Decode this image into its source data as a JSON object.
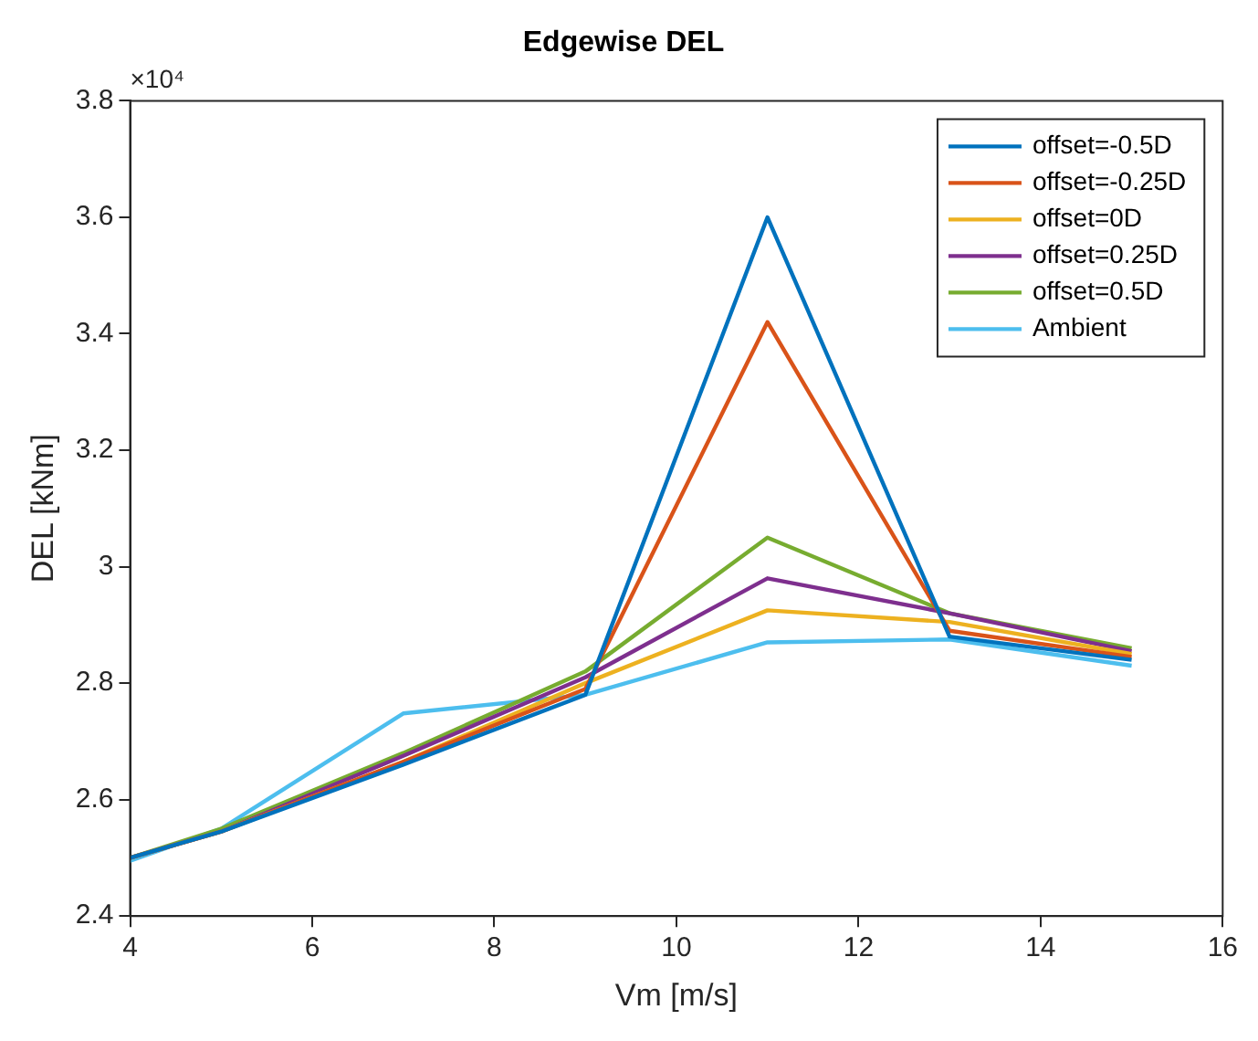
{
  "chart_data": {
    "type": "line",
    "title": "Edgewise DEL",
    "xlabel": "Vm [m/s]",
    "ylabel": "DEL [kNm]",
    "annotations": [
      "×10⁴"
    ],
    "x": [
      4,
      5,
      7,
      9,
      11,
      13,
      15
    ],
    "series": [
      {
        "name": "offset=-0.5D",
        "color": "#0072bd",
        "values": [
          2.5,
          2.545,
          2.66,
          2.78,
          3.6,
          2.88,
          2.84
        ]
      },
      {
        "name": "offset=-0.25D",
        "color": "#d95319",
        "values": [
          2.5,
          2.545,
          2.665,
          2.79,
          3.42,
          2.89,
          2.845
        ]
      },
      {
        "name": "offset=0D",
        "color": "#edb120",
        "values": [
          2.5,
          2.545,
          2.665,
          2.8,
          2.925,
          2.905,
          2.85
        ]
      },
      {
        "name": "offset=0.25D",
        "color": "#7e2f8e",
        "values": [
          2.5,
          2.545,
          2.675,
          2.81,
          2.98,
          2.92,
          2.855
        ]
      },
      {
        "name": "offset=0.5D",
        "color": "#77ac30",
        "values": [
          2.5,
          2.55,
          2.68,
          2.82,
          3.05,
          2.92,
          2.86
        ]
      },
      {
        "name": "Ambient",
        "color": "#4dbeee",
        "values": [
          2.495,
          2.55,
          2.748,
          2.78,
          2.87,
          2.875,
          2.83
        ]
      }
    ],
    "xlim": [
      4,
      16
    ],
    "xticks": [
      4,
      6,
      8,
      10,
      12,
      14,
      16
    ],
    "ylim": [
      2.4,
      3.8
    ],
    "yticks": [
      2.4,
      2.6,
      2.8,
      3,
      3.2,
      3.4,
      3.6,
      3.8
    ],
    "legend": "top right",
    "marker": "none",
    "line_style": "solid"
  }
}
